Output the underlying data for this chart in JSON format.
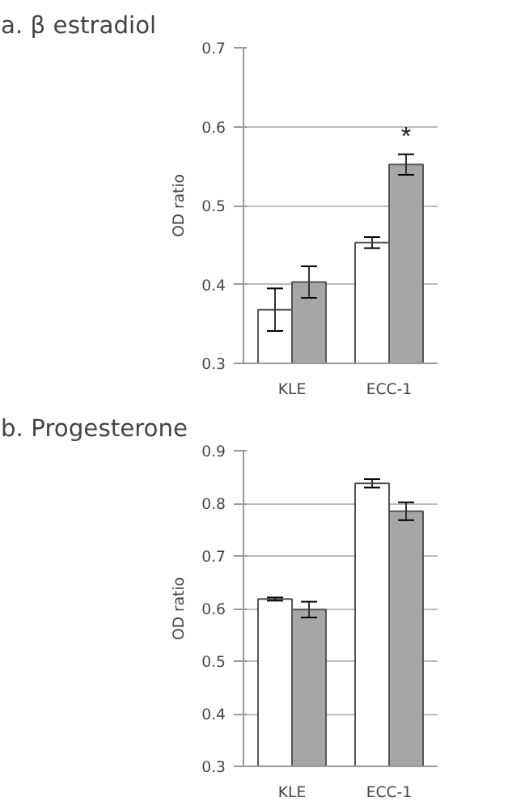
{
  "chart_data": [
    {
      "type": "bar",
      "title": "a. β estradiol",
      "ylabel": "OD ratio",
      "categories": [
        "KLE",
        "ECC-1"
      ],
      "series": [
        {
          "color": "#ffffff",
          "values": [
            0.368,
            0.453
          ],
          "errors": [
            0.027,
            0.007
          ]
        },
        {
          "color": "#a6a6a6",
          "values": [
            0.403,
            0.552
          ],
          "errors": [
            0.02,
            0.013
          ]
        }
      ],
      "ylim": [
        0.3,
        0.7
      ],
      "yticks": [
        0.3,
        0.4,
        0.5,
        0.6,
        0.7
      ],
      "grid": "y",
      "annotations": [
        {
          "text": "*",
          "x": "ECC-1",
          "y": 0.552
        }
      ]
    },
    {
      "type": "bar",
      "title": "b. Progesterone",
      "ylabel": "OD ratio",
      "categories": [
        "KLE",
        "ECC-1"
      ],
      "series": [
        {
          "color": "#ffffff",
          "values": [
            0.618,
            0.838
          ],
          "errors": [
            0.003,
            0.008
          ]
        },
        {
          "color": "#a6a6a6",
          "values": [
            0.598,
            0.785
          ],
          "errors": [
            0.015,
            0.017
          ]
        }
      ],
      "ylim": [
        0.3,
        0.9
      ],
      "yticks": [
        0.3,
        0.4,
        0.5,
        0.6,
        0.7,
        0.8,
        0.9
      ],
      "grid": "y"
    }
  ]
}
